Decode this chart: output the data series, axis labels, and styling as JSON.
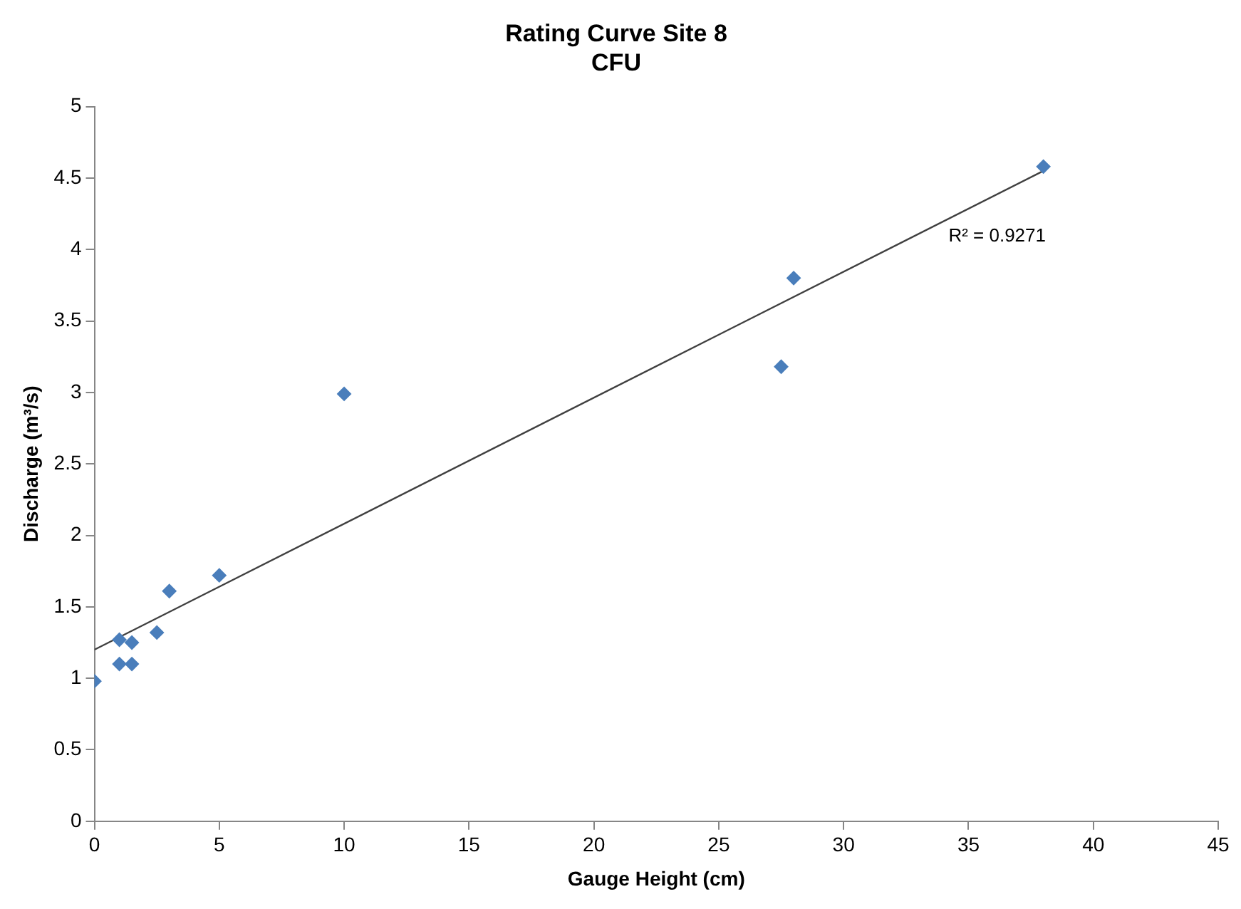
{
  "chart_data": {
    "type": "scatter",
    "title": "Rating Curve Site 8\nCFU",
    "xlabel": "Gauge Height (cm)",
    "ylabel": "Discharge (m³/s)",
    "series": [
      {
        "color": "#4a7ebb",
        "x": [
          0,
          1,
          1,
          1.5,
          1.5,
          2.5,
          3,
          5,
          10,
          27.5,
          28,
          38
        ],
        "values": [
          0.98,
          1.27,
          1.1,
          1.25,
          1.1,
          1.32,
          1.61,
          1.72,
          2.99,
          3.18,
          3.8,
          4.58
        ]
      },
      {
        "type": "line",
        "color": "#404040",
        "x": [
          0,
          38
        ],
        "values": [
          1.2,
          4.55
        ],
        "marker": "none"
      }
    ],
    "annotations": [
      "R² = 0.9271"
    ],
    "xlim": [
      0,
      45
    ],
    "xticks": [
      0,
      5,
      10,
      15,
      20,
      25,
      30,
      35,
      40,
      45
    ],
    "ylim": [
      0,
      5
    ],
    "yticks": [
      0,
      0.5,
      1,
      1.5,
      2,
      2.5,
      3,
      3.5,
      4,
      4.5,
      5
    ],
    "grid": false,
    "legend": false,
    "marker": "diamond"
  }
}
